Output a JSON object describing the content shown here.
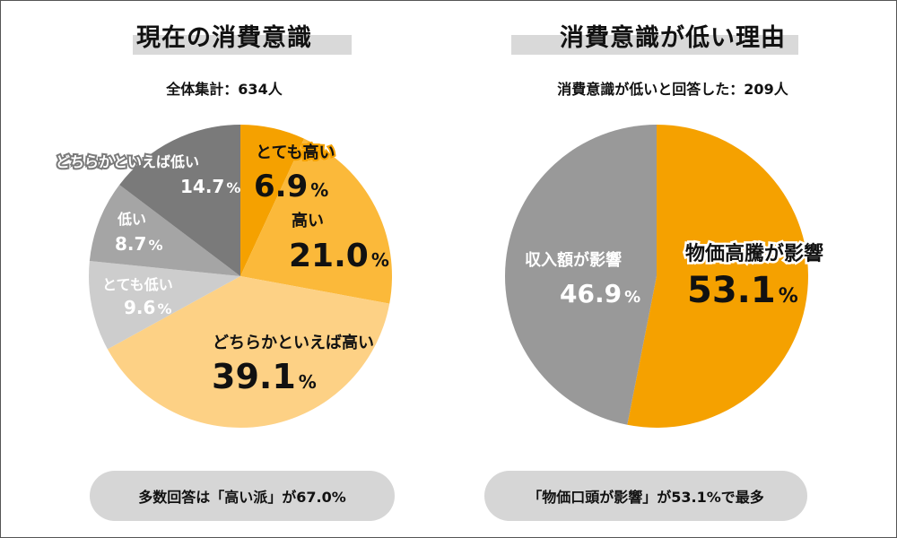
{
  "colors": {
    "dark_orange": "#f5a100",
    "mid_orange": "#fbb93a",
    "light_orange": "#fdd185",
    "light_gray": "#cdcdcd",
    "mid_gray": "#a5a5a5",
    "dark_gray": "#7a7a7a",
    "gray_right": "#999999",
    "orange_right": "#f5a100"
  },
  "chart_data": [
    {
      "type": "pie",
      "title": "現在の消費意識",
      "subtitle": "全体集計：634人",
      "summary": "多数回答は「高い派」が67.0%",
      "slices": [
        {
          "label": "とても高い",
          "value": 6.9,
          "display": "6.9",
          "unit": "%",
          "color_key": "dark_orange"
        },
        {
          "label": "高い",
          "value": 21.0,
          "display": "21.0",
          "unit": "%",
          "color_key": "mid_orange"
        },
        {
          "label": "どちらかといえば高い",
          "value": 39.1,
          "display": "39.1",
          "unit": "%",
          "color_key": "light_orange"
        },
        {
          "label": "とても低い",
          "value": 9.6,
          "display": "9.6",
          "unit": "%",
          "color_key": "light_gray"
        },
        {
          "label": "低い",
          "value": 8.7,
          "display": "8.7",
          "unit": "%",
          "color_key": "mid_gray"
        },
        {
          "label": "どちらかといえば低い",
          "value": 14.7,
          "display": "14.7",
          "unit": "%",
          "color_key": "dark_gray"
        }
      ]
    },
    {
      "type": "pie",
      "title": "消費意識が低い理由",
      "subtitle": "消費意識が低いと回答した：209人",
      "summary": "「物価口頭が影響」が53.1%で最多",
      "slices": [
        {
          "label": "物価高騰が影響",
          "value": 53.1,
          "display": "53.1",
          "unit": "%",
          "color_key": "orange_right"
        },
        {
          "label": "収入額が影響",
          "value": 46.9,
          "display": "46.9",
          "unit": "%",
          "color_key": "gray_right"
        }
      ]
    }
  ]
}
